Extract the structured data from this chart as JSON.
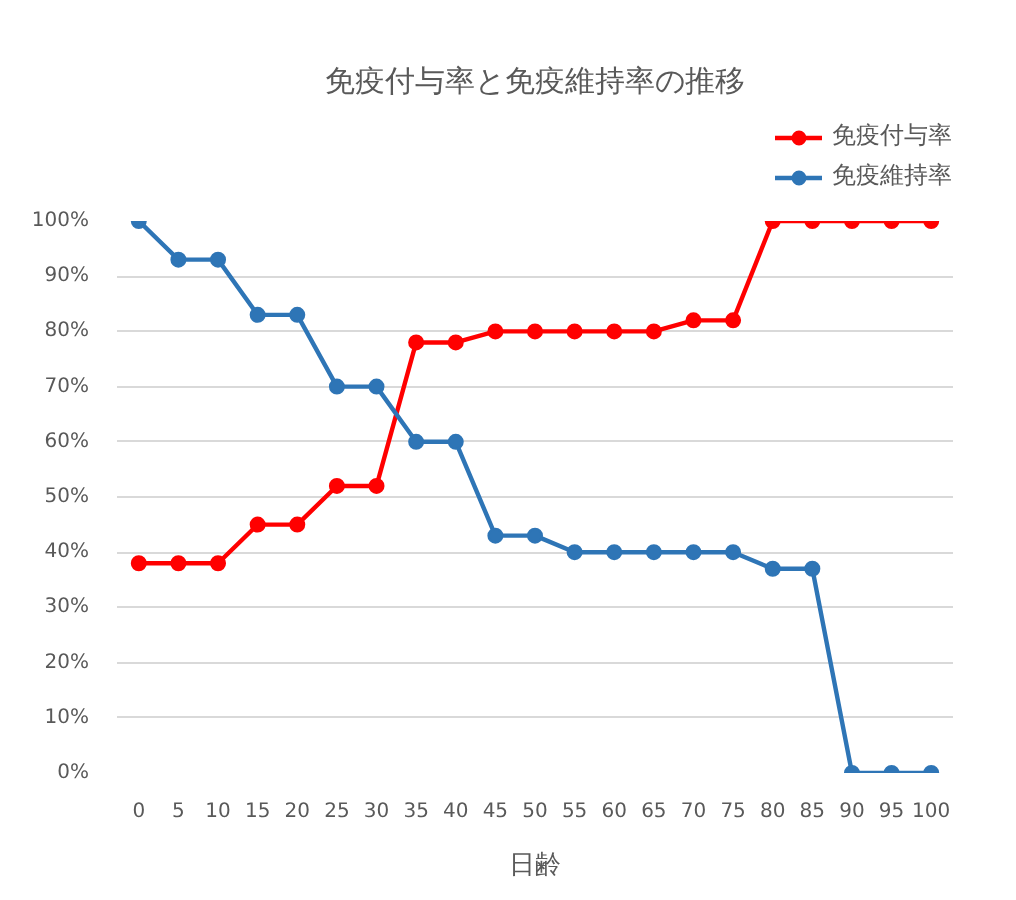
{
  "chart_data": {
    "type": "line",
    "title": "免疫付与率と免疫維持率の推移",
    "xlabel": "日齢",
    "categories": [
      "0",
      "5",
      "10",
      "15",
      "20",
      "25",
      "30",
      "35",
      "40",
      "45",
      "50",
      "55",
      "60",
      "65",
      "70",
      "75",
      "80",
      "85",
      "90",
      "95",
      "100"
    ],
    "series": [
      {
        "name": "免疫付与率",
        "color": "#ff0000",
        "values": [
          38,
          38,
          38,
          45,
          45,
          52,
          52,
          78,
          78,
          80,
          80,
          80,
          80,
          80,
          82,
          82,
          100,
          100,
          100,
          100,
          100
        ]
      },
      {
        "name": "免疫維持率",
        "color": "#2e75b6",
        "values": [
          100,
          93,
          93,
          83,
          83,
          70,
          70,
          60,
          60,
          43,
          43,
          40,
          40,
          40,
          40,
          40,
          37,
          37,
          0,
          0,
          0
        ]
      }
    ],
    "ylim": [
      0,
      100
    ],
    "yticks": [
      {
        "value": 0,
        "label": "0%"
      },
      {
        "value": 10,
        "label": "10%"
      },
      {
        "value": 20,
        "label": "20%"
      },
      {
        "value": 30,
        "label": "30%"
      },
      {
        "value": 40,
        "label": "40%"
      },
      {
        "value": 50,
        "label": "50%"
      },
      {
        "value": 60,
        "label": "60%"
      },
      {
        "value": 70,
        "label": "70%"
      },
      {
        "value": 80,
        "label": "80%"
      },
      {
        "value": 90,
        "label": "90%"
      },
      {
        "value": 100,
        "label": "100%"
      }
    ],
    "grid": "y",
    "legend": "top right",
    "marker": "circle",
    "line_style": "solid"
  }
}
